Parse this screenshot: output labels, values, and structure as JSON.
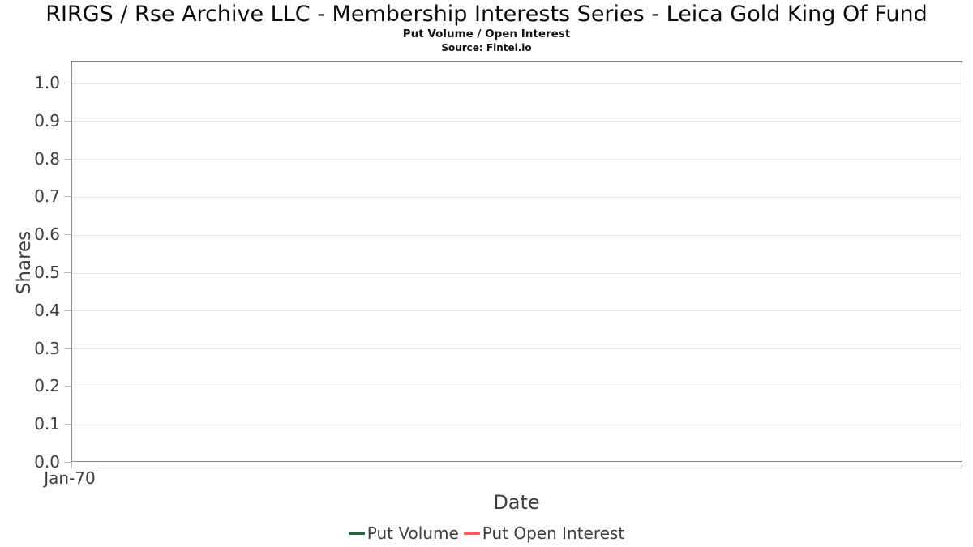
{
  "header": {
    "title": "RIRGS / Rse Archive LLC - Membership Interests Series - Leica Gold King Of Fund",
    "subtitle": "Put Volume / Open Interest",
    "source": "Source: Fintel.io"
  },
  "axes": {
    "y_label": "Shares",
    "x_label": "Date",
    "y_ticks": [
      "1.0",
      "0.9",
      "0.8",
      "0.7",
      "0.6",
      "0.5",
      "0.4",
      "0.3",
      "0.2",
      "0.1",
      "0.0"
    ],
    "x_ticks": [
      "Jan-70"
    ]
  },
  "legend": {
    "items": [
      {
        "label": "Put Volume",
        "color": "#2d5f41"
      },
      {
        "label": "Put Open Interest",
        "color": "#f25f5f"
      }
    ]
  },
  "colors": {
    "plot_border": "#8a8a8a",
    "gridline": "#e4e4e4",
    "tick_mark": "#bdbdbd",
    "label_text": "#3d3d3d"
  },
  "chart_data": {
    "type": "line",
    "title": "RIRGS / Rse Archive LLC - Membership Interests Series - Leica Gold King Of Fund",
    "subtitle": "Put Volume / Open Interest",
    "source": "Source: Fintel.io",
    "xlabel": "Date",
    "ylabel": "Shares",
    "x_tick_labels": [
      "Jan-70"
    ],
    "y_tick_values": [
      0.0,
      0.1,
      0.2,
      0.3,
      0.4,
      0.5,
      0.6,
      0.7,
      0.8,
      0.9,
      1.0
    ],
    "ylim": [
      0.0,
      1.05
    ],
    "grid": true,
    "legend_position": "bottom",
    "series": [
      {
        "name": "Put Volume",
        "color": "#2d5f41",
        "x": [],
        "values": []
      },
      {
        "name": "Put Open Interest",
        "color": "#f25f5f",
        "x": [],
        "values": []
      }
    ]
  }
}
